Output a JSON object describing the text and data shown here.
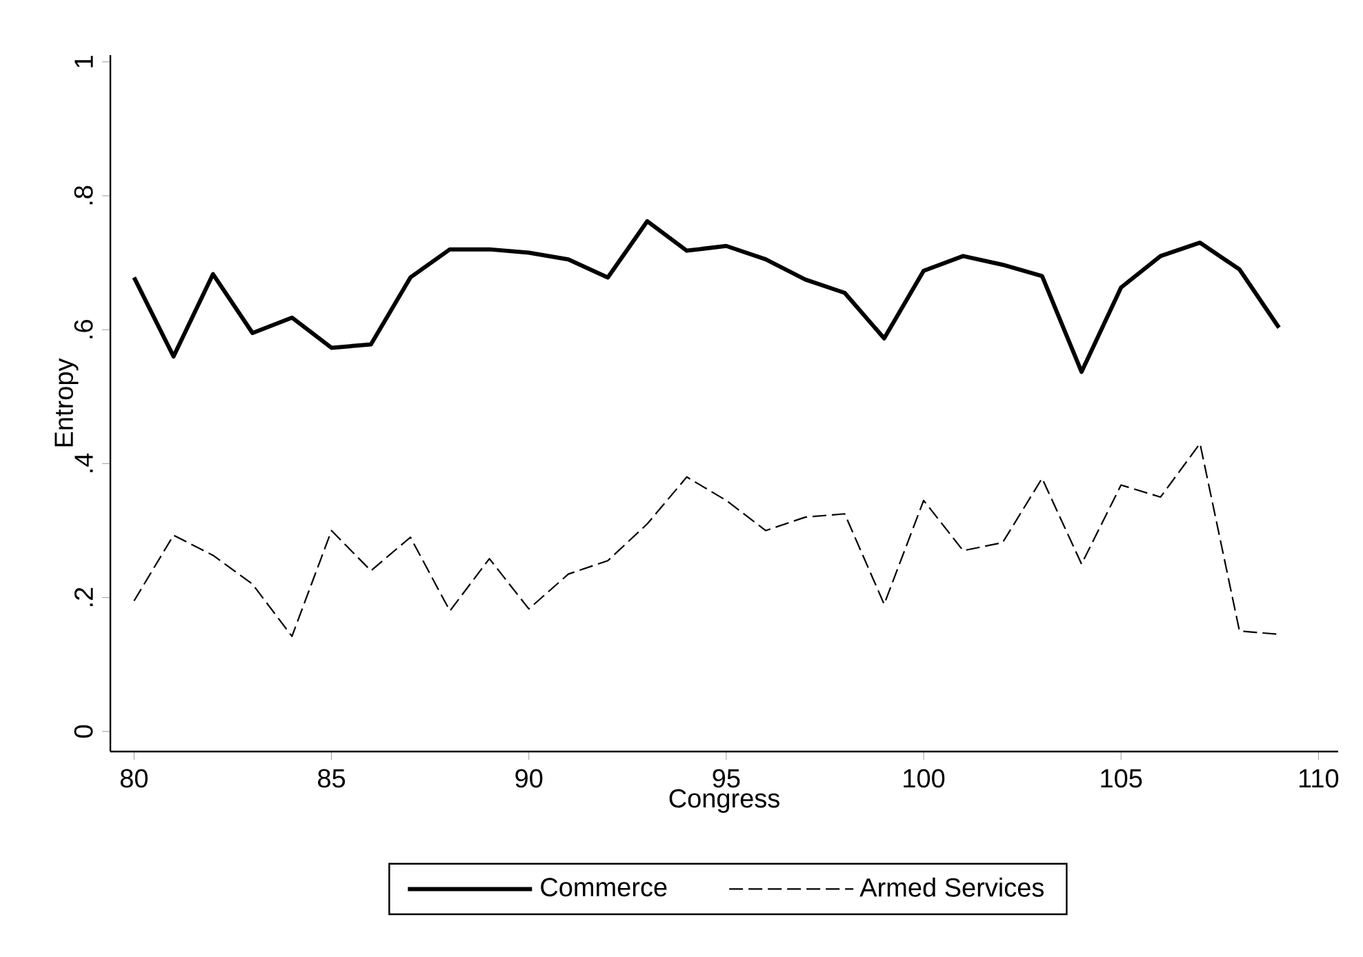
{
  "chart_data": {
    "type": "line",
    "xlabel": "Congress",
    "ylabel": "Entropy",
    "x": [
      80,
      81,
      82,
      83,
      84,
      85,
      86,
      87,
      88,
      89,
      90,
      91,
      92,
      93,
      94,
      95,
      96,
      97,
      98,
      99,
      100,
      101,
      102,
      103,
      104,
      105,
      106,
      107,
      108,
      109
    ],
    "series": [
      {
        "name": "Commerce",
        "color": "#000000",
        "line_style": "solid",
        "values": [
          0.678,
          0.56,
          0.683,
          0.595,
          0.618,
          0.573,
          0.578,
          0.678,
          0.72,
          0.72,
          0.715,
          0.705,
          0.678,
          0.762,
          0.718,
          0.725,
          0.705,
          0.675,
          0.655,
          0.587,
          0.688,
          0.71,
          0.697,
          0.68,
          0.537,
          0.663,
          0.71,
          0.73,
          0.69,
          0.603
        ]
      },
      {
        "name": "Armed Services",
        "color": "#000000",
        "line_style": "dashed",
        "values": [
          0.195,
          0.293,
          0.263,
          0.22,
          0.142,
          0.3,
          0.24,
          0.29,
          0.18,
          0.258,
          0.183,
          0.235,
          0.255,
          0.31,
          0.38,
          0.345,
          0.3,
          0.32,
          0.325,
          0.19,
          0.345,
          0.27,
          0.282,
          0.378,
          0.25,
          0.368,
          0.35,
          0.43,
          0.15,
          0.145
        ]
      }
    ],
    "xlim": [
      79.4,
      110.5
    ],
    "ylim": [
      -0.03,
      1.01
    ],
    "xticks": [
      80,
      85,
      90,
      95,
      100,
      105,
      110
    ],
    "yticks": [
      0,
      {
        "value": 0.2,
        "label": ".2"
      },
      {
        "value": 0.4,
        "label": ".4"
      },
      {
        "value": 0.6,
        "label": ".6"
      },
      {
        "value": 0.8,
        "label": ".8"
      },
      1
    ],
    "grid": false,
    "legend": "bottom",
    "marker": "none"
  }
}
